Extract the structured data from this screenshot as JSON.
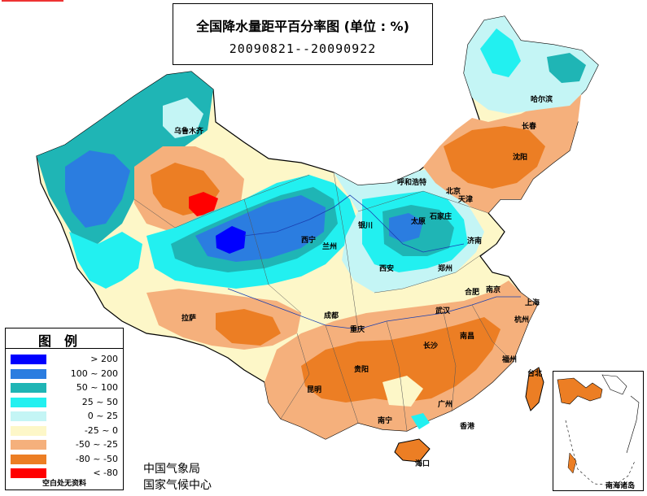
{
  "title": "全国降水量距平百分率图 (单位 : %)",
  "period": "20090821--20090922",
  "legend": {
    "title": "图例",
    "items": [
      {
        "label": "> 200",
        "color": "#0000ff"
      },
      {
        "label": "100 ~ 200",
        "color": "#2b7de0"
      },
      {
        "label": "50 ~ 100",
        "color": "#1fb5b5"
      },
      {
        "label": "25 ~ 50",
        "color": "#22f0f0"
      },
      {
        "label": "0 ~ 25",
        "color": "#c4f5f5"
      },
      {
        "label": "-25 ~ 0",
        "color": "#fdf7c8"
      },
      {
        "label": "-50 ~ -25",
        "color": "#f5b07c"
      },
      {
        "label": "-80 ~ -50",
        "color": "#ec7e24"
      },
      {
        "label": "< -80",
        "color": "#ff0000"
      }
    ],
    "note": "空白处无资料"
  },
  "agency": {
    "line1": "中国气象局",
    "line2": "国家气候中心"
  },
  "inset_label": "南海诸岛",
  "cities": {
    "wulumuqi": "乌鲁木齐",
    "haerbin": "哈尔滨",
    "changchun": "长春",
    "shenyang": "沈阳",
    "huhehaote": "呼和浩特",
    "beijing": "北京",
    "tianjin": "天津",
    "shijiazhuang": "石家庄",
    "taiyuan": "太原",
    "jinan": "济南",
    "yinchuan": "银川",
    "xining": "西宁",
    "lanzhou": "兰州",
    "xian": "西安",
    "zhengzhou": "郑州",
    "hefei": "合肥",
    "nanjing": "南京",
    "shanghai": "上海",
    "hangzhou": "杭州",
    "lasa": "拉萨",
    "chengdu": "成都",
    "chongqing": "重庆",
    "wuhan": "武汉",
    "changsha": "长沙",
    "nanchang": "南昌",
    "fuzhou": "福州",
    "taibei": "台北",
    "guiyang": "贵阳",
    "kunming": "昆明",
    "nanning": "南宁",
    "guangzhou": "广州",
    "xianggang": "香港",
    "haikou": "海口"
  }
}
